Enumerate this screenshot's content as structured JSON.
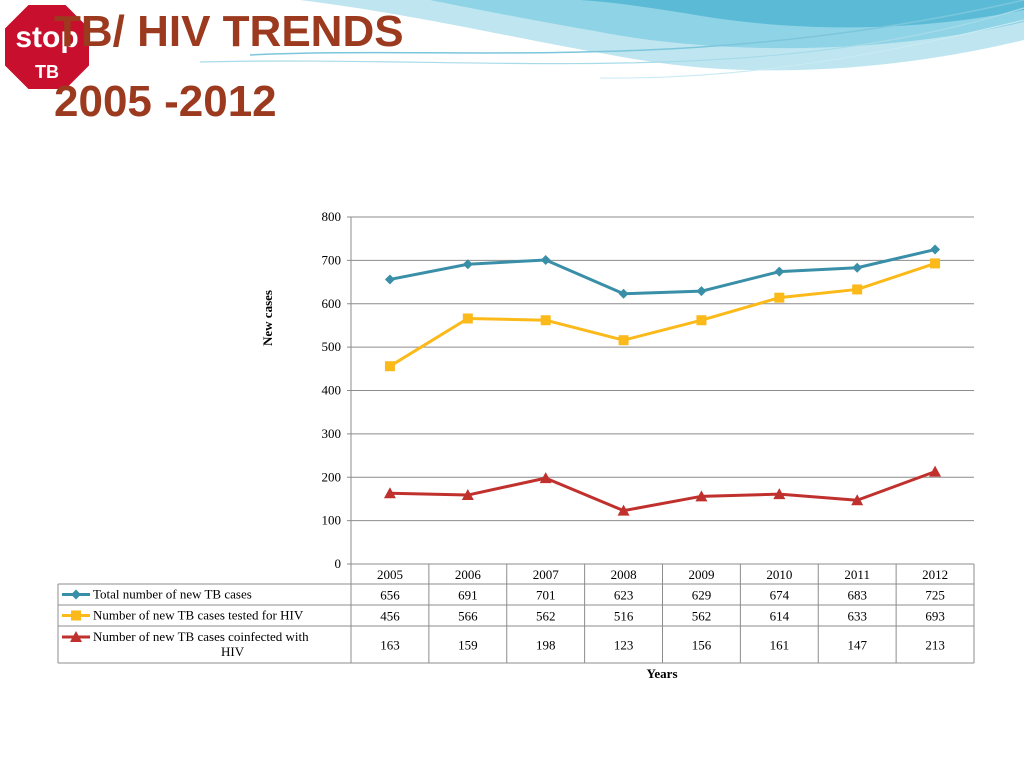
{
  "slide": {
    "title_line1": "TB/ HIV TRENDS",
    "title_line2": "2005 -2012",
    "logo": {
      "text_top": "stop",
      "text_bottom": "TB",
      "color": "#c8102e"
    }
  },
  "chart_data": {
    "type": "line",
    "title": "",
    "xlabel": "Years",
    "ylabel": "New cases",
    "ylim": [
      0,
      800
    ],
    "yticks": [
      0,
      100,
      200,
      300,
      400,
      500,
      600,
      700,
      800
    ],
    "grid": true,
    "legend": "data-table",
    "categories": [
      "2005",
      "2006",
      "2007",
      "2008",
      "2009",
      "2010",
      "2011",
      "2012"
    ],
    "series": [
      {
        "name": "Total  number of new TB cases",
        "values": [
          656,
          691,
          701,
          623,
          629,
          674,
          683,
          725
        ],
        "color": "#3a8fa8",
        "marker": "diamond"
      },
      {
        "name": "Number of new TB cases tested for HIV",
        "values": [
          456,
          566,
          562,
          516,
          562,
          614,
          633,
          693
        ],
        "color": "#fbb91a",
        "marker": "square"
      },
      {
        "name": "Number of new TB cases coinfected with HIV",
        "values": [
          163,
          159,
          198,
          123,
          156,
          161,
          147,
          213
        ],
        "color": "#c0312e",
        "marker": "triangle"
      }
    ]
  }
}
